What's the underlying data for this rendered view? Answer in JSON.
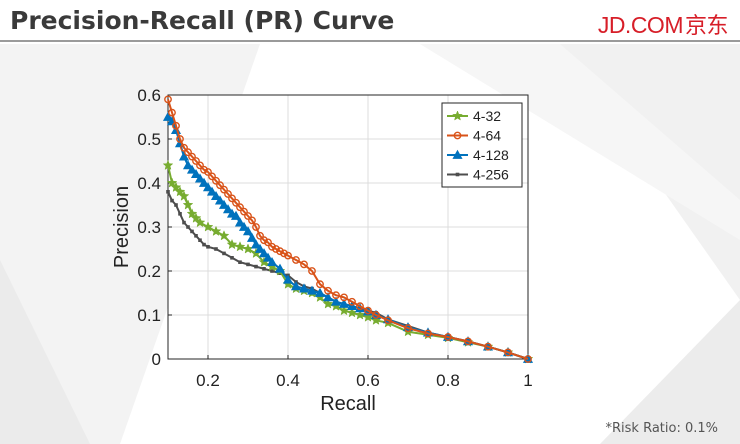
{
  "header": {
    "title": "Precision-Recall (PR) Curve",
    "logo_en": "JD.COM",
    "logo_cn": "京东"
  },
  "footnote": "*Risk Ratio: 0.1%",
  "colors": {
    "accent": "#d71e28",
    "series_4_32": "#77ac30",
    "series_4_64": "#d95319",
    "series_4_128": "#0072bd",
    "series_4_256": "#4d4d4d"
  },
  "chart_data": {
    "type": "line",
    "title": "",
    "xlabel": "Recall",
    "ylabel": "Precision",
    "xlim": [
      0.1,
      1
    ],
    "ylim": [
      0,
      0.6
    ],
    "xticks": [
      0.2,
      0.4,
      0.6,
      0.8,
      1
    ],
    "xtick_labels": [
      "0.2",
      "0.4",
      "0.6",
      "0.8",
      "1"
    ],
    "yticks": [
      0,
      0.1,
      0.2,
      0.3,
      0.4,
      0.5,
      0.6
    ],
    "ytick_labels": [
      "0",
      "0.1",
      "0.2",
      "0.3",
      "0.4",
      "0.5",
      "0.6"
    ],
    "grid": true,
    "legend_position": "top-right",
    "series": [
      {
        "name": "4-32",
        "color": "#77ac30",
        "marker": "star",
        "x": [
          0.1,
          0.11,
          0.12,
          0.13,
          0.14,
          0.15,
          0.16,
          0.17,
          0.18,
          0.2,
          0.22,
          0.24,
          0.26,
          0.28,
          0.3,
          0.32,
          0.34,
          0.36,
          0.38,
          0.4,
          0.42,
          0.44,
          0.46,
          0.48,
          0.5,
          0.52,
          0.54,
          0.56,
          0.58,
          0.6,
          0.62,
          0.65,
          0.7,
          0.75,
          0.8,
          0.85,
          0.9,
          0.95,
          1.0
        ],
        "y": [
          0.44,
          0.4,
          0.39,
          0.38,
          0.37,
          0.35,
          0.33,
          0.32,
          0.31,
          0.3,
          0.29,
          0.28,
          0.26,
          0.255,
          0.25,
          0.24,
          0.22,
          0.21,
          0.2,
          0.17,
          0.16,
          0.155,
          0.15,
          0.14,
          0.125,
          0.12,
          0.11,
          0.105,
          0.1,
          0.095,
          0.088,
          0.082,
          0.062,
          0.055,
          0.048,
          0.038,
          0.028,
          0.015,
          0.0
        ]
      },
      {
        "name": "4-64",
        "color": "#d95319",
        "marker": "circle",
        "x": [
          0.1,
          0.11,
          0.12,
          0.13,
          0.14,
          0.15,
          0.16,
          0.17,
          0.18,
          0.19,
          0.2,
          0.21,
          0.22,
          0.23,
          0.24,
          0.25,
          0.26,
          0.27,
          0.28,
          0.29,
          0.3,
          0.31,
          0.32,
          0.33,
          0.34,
          0.35,
          0.36,
          0.37,
          0.38,
          0.39,
          0.4,
          0.42,
          0.44,
          0.46,
          0.48,
          0.5,
          0.52,
          0.54,
          0.56,
          0.58,
          0.6,
          0.62,
          0.65,
          0.7,
          0.75,
          0.8,
          0.85,
          0.9,
          0.95,
          1.0
        ],
        "y": [
          0.59,
          0.56,
          0.53,
          0.5,
          0.48,
          0.47,
          0.46,
          0.45,
          0.44,
          0.43,
          0.425,
          0.415,
          0.405,
          0.395,
          0.385,
          0.375,
          0.365,
          0.355,
          0.345,
          0.335,
          0.325,
          0.315,
          0.3,
          0.28,
          0.27,
          0.265,
          0.255,
          0.25,
          0.245,
          0.24,
          0.235,
          0.225,
          0.215,
          0.2,
          0.17,
          0.155,
          0.145,
          0.14,
          0.13,
          0.12,
          0.11,
          0.1,
          0.088,
          0.07,
          0.058,
          0.05,
          0.04,
          0.028,
          0.015,
          0.0
        ]
      },
      {
        "name": "4-128",
        "color": "#0072bd",
        "marker": "triangle",
        "x": [
          0.1,
          0.11,
          0.12,
          0.13,
          0.14,
          0.15,
          0.16,
          0.17,
          0.18,
          0.19,
          0.2,
          0.21,
          0.22,
          0.23,
          0.24,
          0.25,
          0.26,
          0.27,
          0.28,
          0.29,
          0.3,
          0.31,
          0.32,
          0.33,
          0.34,
          0.35,
          0.36,
          0.38,
          0.4,
          0.42,
          0.44,
          0.46,
          0.48,
          0.5,
          0.52,
          0.54,
          0.56,
          0.58,
          0.6,
          0.62,
          0.65,
          0.7,
          0.75,
          0.8,
          0.85,
          0.9,
          0.95,
          1.0
        ],
        "y": [
          0.55,
          0.54,
          0.52,
          0.49,
          0.46,
          0.44,
          0.43,
          0.42,
          0.41,
          0.4,
          0.39,
          0.38,
          0.37,
          0.36,
          0.35,
          0.34,
          0.33,
          0.325,
          0.31,
          0.3,
          0.29,
          0.275,
          0.26,
          0.25,
          0.24,
          0.23,
          0.22,
          0.205,
          0.18,
          0.165,
          0.16,
          0.155,
          0.15,
          0.14,
          0.13,
          0.125,
          0.12,
          0.115,
          0.108,
          0.1,
          0.09,
          0.072,
          0.06,
          0.05,
          0.04,
          0.028,
          0.015,
          0.0
        ]
      },
      {
        "name": "4-256",
        "color": "#4d4d4d",
        "marker": "square",
        "x": [
          0.1,
          0.11,
          0.12,
          0.13,
          0.14,
          0.15,
          0.16,
          0.17,
          0.18,
          0.19,
          0.2,
          0.22,
          0.24,
          0.26,
          0.28,
          0.3,
          0.32,
          0.34,
          0.36,
          0.38,
          0.4,
          0.42,
          0.44,
          0.46,
          0.48,
          0.5,
          0.52,
          0.54,
          0.56,
          0.58,
          0.6,
          0.62,
          0.65,
          0.7,
          0.75,
          0.8,
          0.85,
          0.9,
          0.95,
          1.0
        ],
        "y": [
          0.38,
          0.36,
          0.35,
          0.33,
          0.31,
          0.3,
          0.29,
          0.28,
          0.27,
          0.26,
          0.255,
          0.25,
          0.24,
          0.23,
          0.22,
          0.215,
          0.21,
          0.205,
          0.2,
          0.195,
          0.19,
          0.175,
          0.165,
          0.16,
          0.15,
          0.14,
          0.13,
          0.125,
          0.12,
          0.115,
          0.11,
          0.105,
          0.09,
          0.075,
          0.06,
          0.05,
          0.04,
          0.028,
          0.015,
          0.0
        ]
      }
    ]
  }
}
